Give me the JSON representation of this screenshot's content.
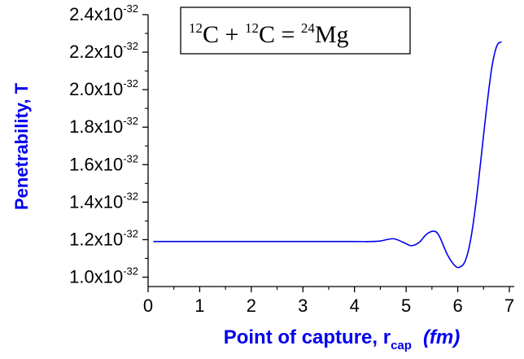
{
  "chart_data": {
    "type": "line",
    "title": "",
    "annotation": {
      "a_mass": "12",
      "a_sym": "C",
      "plus": " + ",
      "b_mass": "12",
      "b_sym": "C",
      "eq": " = ",
      "c_mass": "24",
      "c_sym": "Mg"
    },
    "xlabel": {
      "main": "Point of capture, r",
      "sub": "cap",
      "unit": "(fm)"
    },
    "ylabel": "Penetrability, T",
    "xlim": [
      0,
      7
    ],
    "ylim": [
      0.95,
      2.4
    ],
    "x_ticks": [
      0,
      1,
      2,
      3,
      4,
      5,
      6,
      7
    ],
    "x_tick_labels": [
      "0",
      "1",
      "2",
      "3",
      "4",
      "5",
      "6",
      "7"
    ],
    "y_ticks": [
      {
        "value": 1.0,
        "mant": "1.0x10",
        "exp": "-32"
      },
      {
        "value": 1.2,
        "mant": "1.2x10",
        "exp": "-32"
      },
      {
        "value": 1.4,
        "mant": "1.4x10",
        "exp": "-32"
      },
      {
        "value": 1.6,
        "mant": "1.6x10",
        "exp": "-32"
      },
      {
        "value": 1.8,
        "mant": "1.8x10",
        "exp": "-32"
      },
      {
        "value": 2.0,
        "mant": "2.0x10",
        "exp": "-32"
      },
      {
        "value": 2.2,
        "mant": "2.2x10",
        "exp": "-32"
      },
      {
        "value": 2.4,
        "mant": "2.4x10",
        "exp": "-32"
      }
    ],
    "y_unit_factor": "1e-32",
    "grid": false,
    "series": [
      {
        "color": "#0000ee",
        "x": [
          0.1,
          1.0,
          2.0,
          3.0,
          4.0,
          4.3,
          4.5,
          4.75,
          4.95,
          5.1,
          5.25,
          5.4,
          5.55,
          5.65,
          5.8,
          5.95,
          6.05,
          6.15,
          6.25,
          6.35,
          6.45,
          6.55,
          6.65,
          6.72,
          6.78,
          6.85
        ],
        "y": [
          1.19,
          1.19,
          1.19,
          1.19,
          1.19,
          1.19,
          1.193,
          1.205,
          1.185,
          1.168,
          1.185,
          1.23,
          1.245,
          1.215,
          1.12,
          1.06,
          1.055,
          1.09,
          1.2,
          1.39,
          1.63,
          1.88,
          2.1,
          2.2,
          2.245,
          2.255
        ]
      }
    ]
  }
}
